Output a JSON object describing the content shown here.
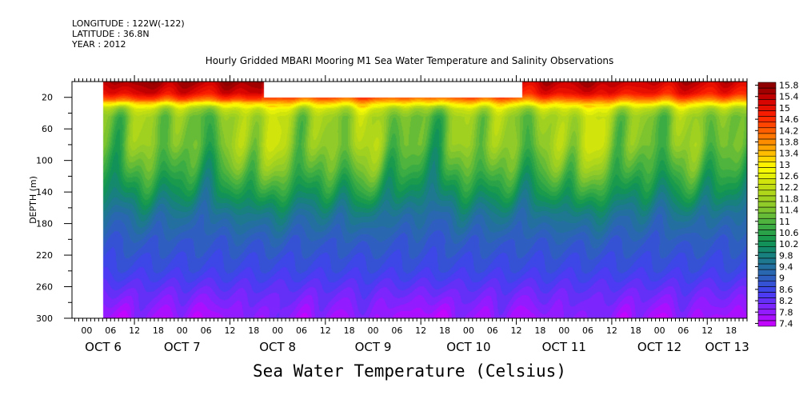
{
  "header": {
    "longitude": "LONGITUDE : 122W(-122)",
    "latitude": "LATITUDE : 36.8N",
    "year": "YEAR : 2012"
  },
  "chart_data": {
    "type": "heatmap",
    "title": "Hourly Gridded MBARI Mooring M1 Sea Water Temperature and Salinity Observations",
    "xlabel": "Sea Water Temperature (Celsius)",
    "ylabel": "DEPTH (m)",
    "x_units": "hours since OCT 6 2012 00:00",
    "xlim": [
      8.3,
      178
    ],
    "ylim": [
      0,
      300
    ],
    "y_inverted": true,
    "y_ticks": [
      "20",
      "60",
      "100",
      "140",
      "180",
      "220",
      "260",
      "300"
    ],
    "x_hour_ticks": [
      "12",
      "18",
      "00",
      "06",
      "12",
      "18",
      "00",
      "06",
      "12",
      "18",
      "00",
      "06",
      "12",
      "18",
      "00",
      "06",
      "12",
      "18",
      "00",
      "06",
      "12",
      "18",
      "00",
      "06",
      "12",
      "18",
      "00",
      "06",
      "12",
      "18",
      "00",
      "06"
    ],
    "x_hour_tick_hours": [
      12,
      18,
      24,
      30,
      36,
      42,
      48,
      54,
      60,
      66,
      72,
      78,
      84,
      90,
      96,
      102,
      108,
      114,
      120,
      126,
      132,
      138,
      144,
      150,
      156,
      162,
      168,
      174,
      180,
      186,
      192,
      198
    ],
    "x_day_labels": [
      "OCT  6",
      "OCT  7",
      "OCT  8",
      "OCT  9",
      "OCT 10",
      "OCT 11",
      "OCT 12",
      "OCT 13"
    ],
    "data_start_hour": 16.2,
    "missing_surface_window": {
      "from_hour": 56.6,
      "to_hour": 121.5,
      "above_depth_m": 20
    },
    "profile_depth_m": [
      0,
      15,
      22,
      28,
      35,
      45,
      80,
      110,
      140,
      170,
      200,
      240,
      270,
      300
    ],
    "profile_temp_c": [
      15.5,
      15.0,
      14.2,
      13.2,
      12.2,
      11.7,
      11.6,
      11.1,
      10.4,
      9.6,
      9.1,
      8.7,
      8.2,
      7.8
    ],
    "colorbar": {
      "min": 7.4,
      "max": 15.8,
      "step": 0.2,
      "labels": [
        "15.8",
        "15.4",
        "15",
        "14.6",
        "14.2",
        "13.8",
        "13.4",
        "13",
        "12.6",
        "12.2",
        "11.8",
        "11.4",
        "11",
        "10.6",
        "10.2",
        "9.8",
        "9.4",
        "9",
        "8.6",
        "8.2",
        "7.8",
        "7.4"
      ],
      "color_stops": [
        {
          "v": 7.4,
          "c": "#cc00ff"
        },
        {
          "v": 8.0,
          "c": "#8820ff"
        },
        {
          "v": 8.6,
          "c": "#4040f0"
        },
        {
          "v": 9.2,
          "c": "#2c64b8"
        },
        {
          "v": 9.8,
          "c": "#1a7c88"
        },
        {
          "v": 10.4,
          "c": "#109650"
        },
        {
          "v": 11.0,
          "c": "#44b040"
        },
        {
          "v": 11.6,
          "c": "#88c82c"
        },
        {
          "v": 12.4,
          "c": "#c8e010"
        },
        {
          "v": 13.0,
          "c": "#ffff00"
        },
        {
          "v": 13.6,
          "c": "#ffb000"
        },
        {
          "v": 14.2,
          "c": "#ff6a00"
        },
        {
          "v": 14.8,
          "c": "#ff2000"
        },
        {
          "v": 15.4,
          "c": "#d00000"
        },
        {
          "v": 15.8,
          "c": "#900000"
        }
      ]
    }
  }
}
